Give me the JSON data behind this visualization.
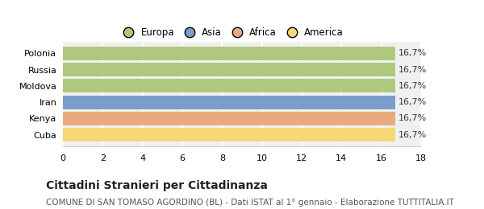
{
  "categories": [
    "Polonia",
    "Russia",
    "Moldova",
    "Iran",
    "Kenya",
    "Cuba"
  ],
  "values": [
    16.7,
    16.7,
    16.7,
    16.7,
    16.7,
    16.7
  ],
  "bar_colors": [
    "#aec97e",
    "#aec97e",
    "#aec97e",
    "#7b9dc9",
    "#e8aa80",
    "#f5d875"
  ],
  "legend_labels": [
    "Europa",
    "Asia",
    "Africa",
    "America"
  ],
  "legend_colors": [
    "#aec97e",
    "#7b9dc9",
    "#e8aa80",
    "#f5d875"
  ],
  "value_labels": [
    "16,7%",
    "16,7%",
    "16,7%",
    "16,7%",
    "16,7%",
    "16,7%"
  ],
  "xlim": [
    0,
    18
  ],
  "xticks": [
    0,
    2,
    4,
    6,
    8,
    10,
    12,
    14,
    16,
    18
  ],
  "title": "Cittadini Stranieri per Cittadinanza",
  "subtitle": "COMUNE DI SAN TOMASO AGORDINO (BL) - Dati ISTAT al 1° gennaio - Elaborazione TUTTITALIA.IT",
  "background_color": "#ffffff",
  "plot_bg_color": "#f0f0f0",
  "bar_height": 0.85,
  "title_fontsize": 10,
  "subtitle_fontsize": 7.5,
  "label_fontsize": 8,
  "tick_fontsize": 8,
  "legend_fontsize": 8.5
}
